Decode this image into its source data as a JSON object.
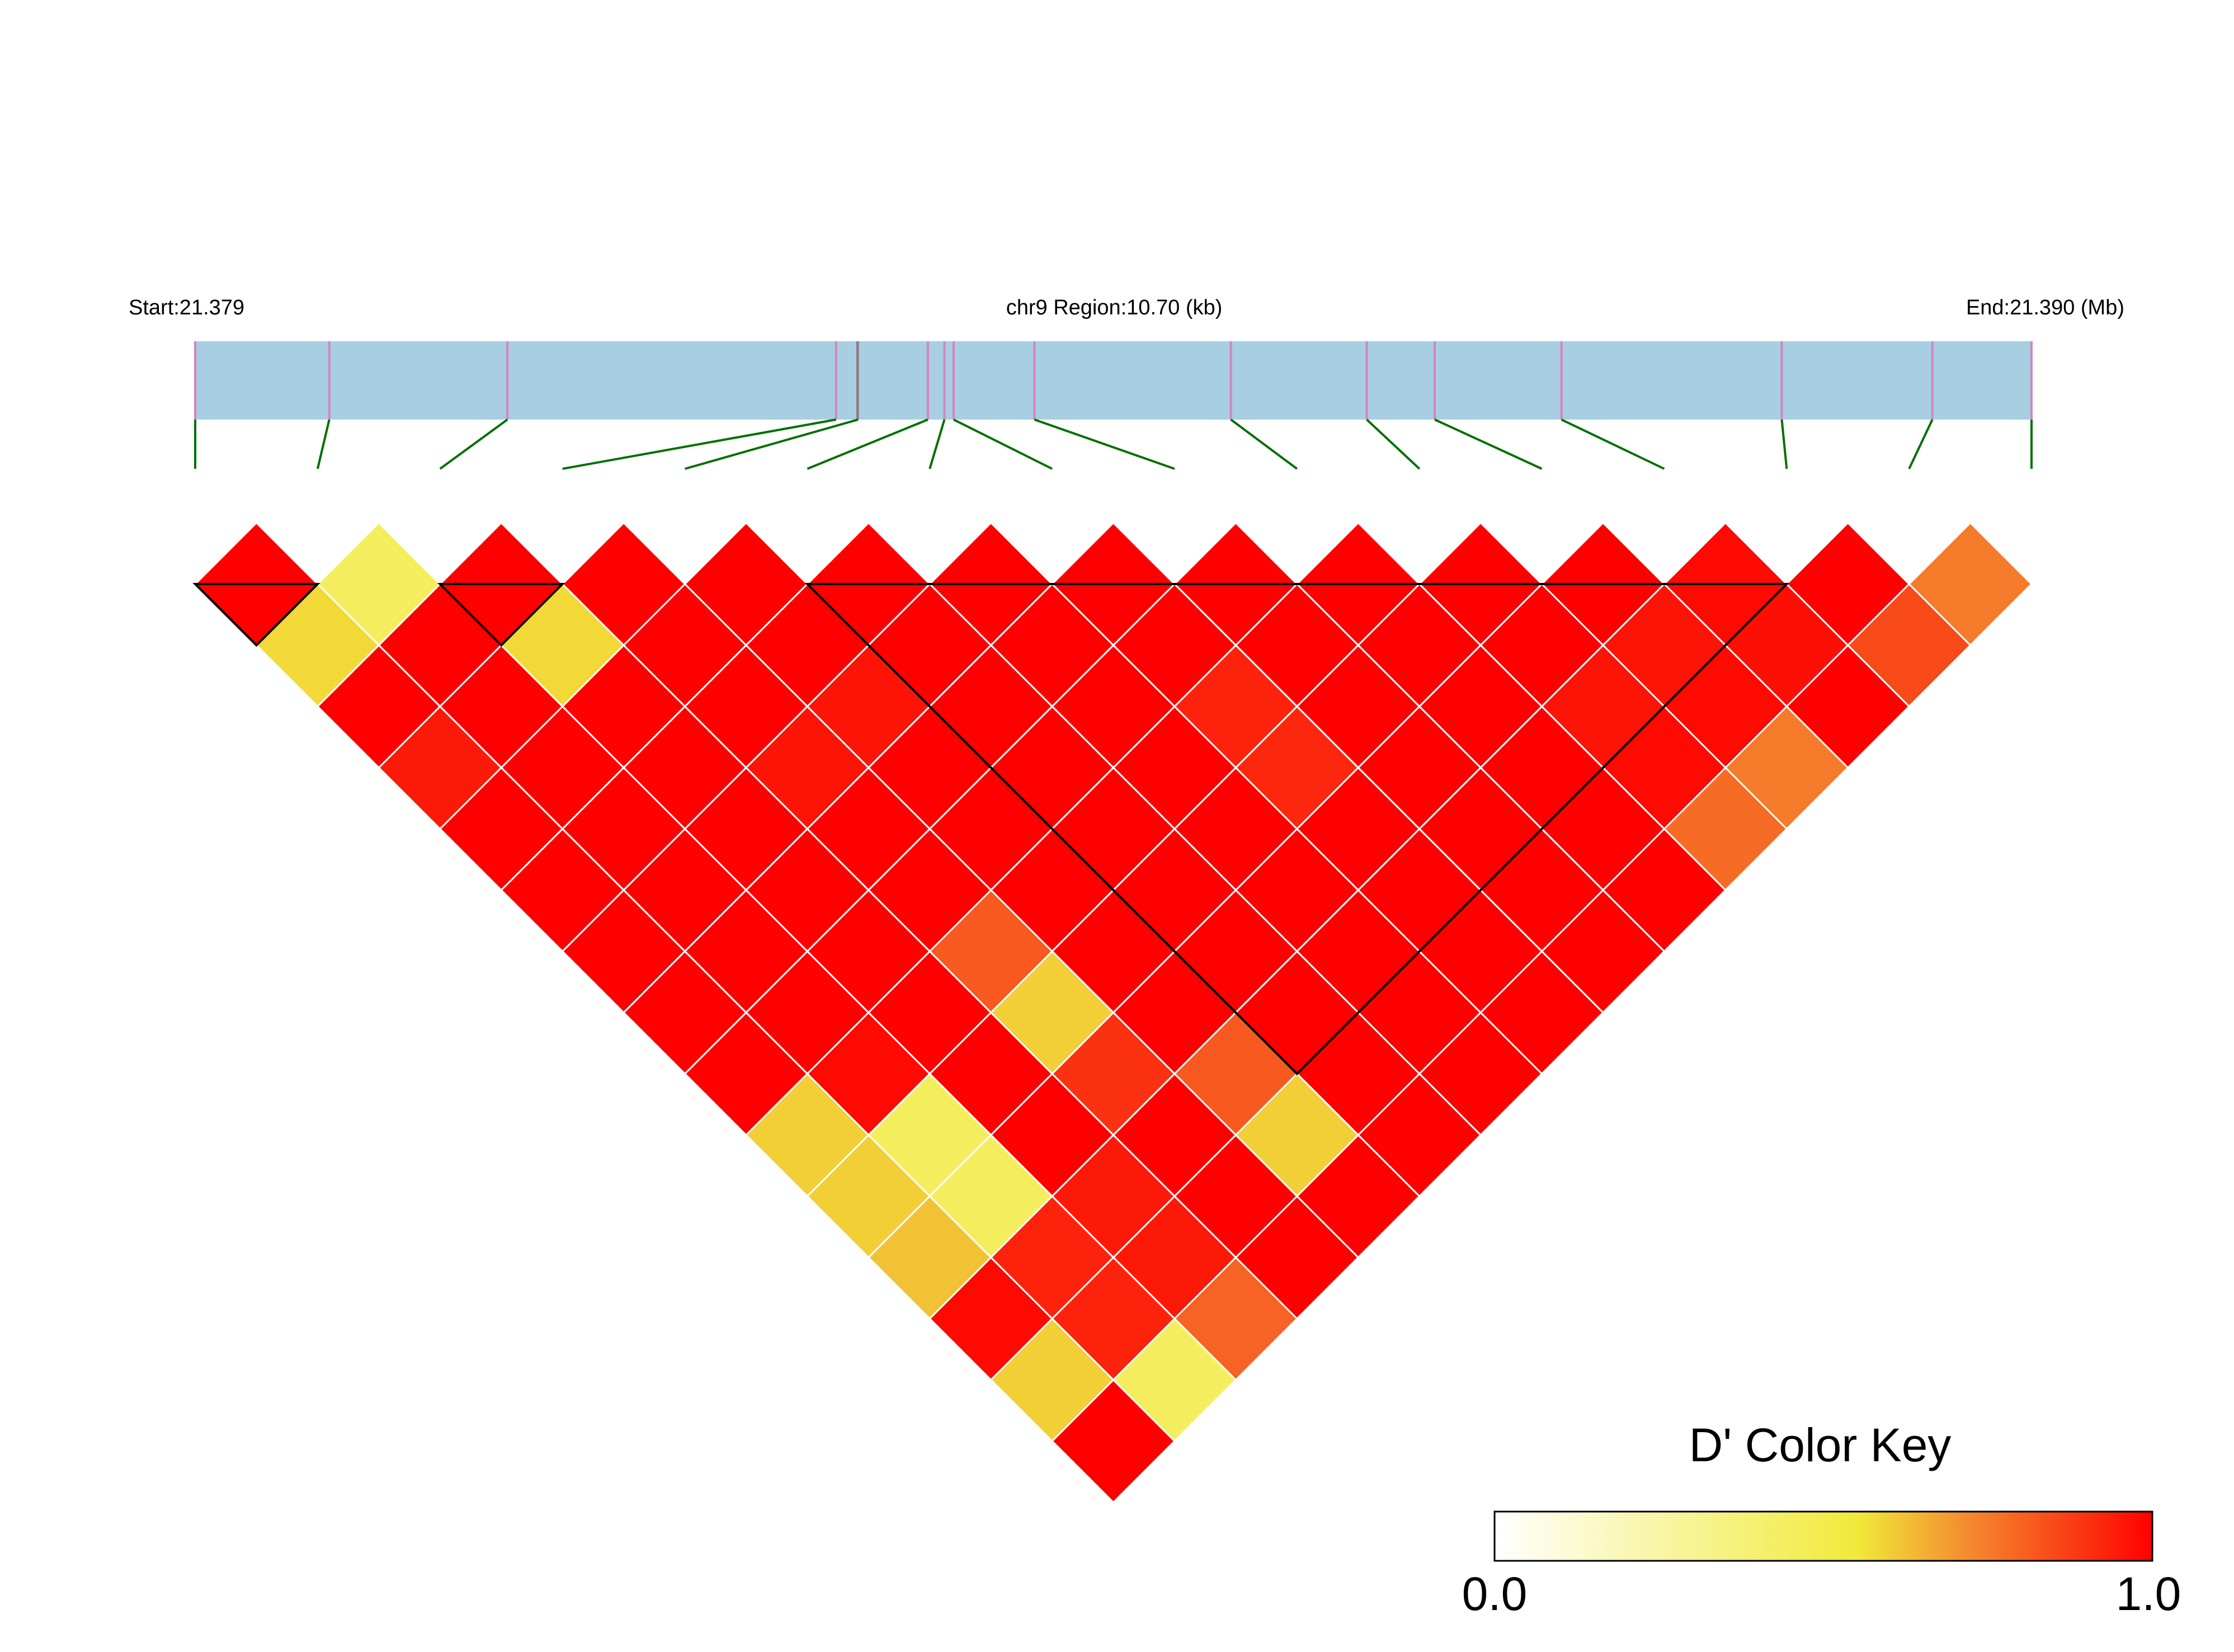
{
  "header": {
    "start_label": "Start:21.379",
    "region_label": "chr9 Region:10.70 (kb)",
    "end_label": "End:21.390 (Mb)"
  },
  "color_key": {
    "title": "D' Color Key",
    "min_label": "0.0",
    "max_label": "1.0",
    "stops": [
      "#ffffff",
      "#f1ea3a",
      "#f48a2f",
      "#ff0000"
    ]
  },
  "colors": {
    "track_fill": "#a7cfe1",
    "snp_tick": "#d783bf",
    "connector": "#007000",
    "block_outline": "#000000",
    "cell_border": "#ffffff"
  },
  "chart_data": {
    "type": "heatmap",
    "title": "",
    "measure": "D'",
    "scale": [
      0,
      1
    ],
    "region": {
      "chromosome": "chr9",
      "start_mb": 21.379,
      "end_mb": 21.39,
      "length_kb": 10.7
    },
    "snp_positions_frac": [
      0.0,
      0.073,
      0.17,
      0.349,
      0.361,
      0.399,
      0.408,
      0.413,
      0.457,
      0.564,
      0.638,
      0.675,
      0.744,
      0.864,
      0.946,
      1.0
    ],
    "ld_matrix_rows": [
      [
        1.0,
        0.45,
        1.0,
        1.0,
        1.0,
        1.0,
        1.0,
        1.0,
        1.0,
        1.0,
        1.0,
        1.0,
        0.98,
        1.0,
        0.75
      ],
      [
        0.58,
        1.0,
        0.58,
        1.0,
        1.0,
        1.0,
        1.0,
        1.0,
        1.0,
        1.0,
        1.0,
        0.96,
        0.97,
        0.85
      ],
      [
        1.0,
        1.0,
        1.0,
        1.0,
        0.96,
        1.0,
        1.0,
        0.93,
        1.0,
        1.0,
        0.96,
        0.98,
        1.0
      ],
      [
        0.95,
        1.0,
        1.0,
        0.96,
        1.0,
        1.0,
        1.0,
        0.92,
        1.0,
        1.0,
        0.98,
        0.75
      ],
      [
        1.0,
        1.0,
        1.0,
        1.0,
        1.0,
        1.0,
        1.0,
        1.0,
        1.0,
        1.0,
        0.78
      ],
      [
        1.0,
        1.0,
        1.0,
        1.0,
        1.0,
        1.0,
        1.0,
        1.0,
        1.0,
        1.0
      ],
      [
        1.0,
        1.0,
        1.0,
        0.82,
        1.0,
        1.0,
        1.0,
        1.0,
        1.0
      ],
      [
        1.0,
        1.0,
        1.0,
        0.6,
        1.0,
        1.0,
        1.0,
        1.0
      ],
      [
        1.0,
        0.98,
        1.0,
        0.9,
        0.82,
        1.0,
        1.0
      ],
      [
        0.6,
        0.45,
        1.0,
        1.0,
        0.6,
        1.0
      ],
      [
        0.6,
        0.45,
        0.95,
        1.0,
        1.0
      ],
      [
        0.62,
        0.93,
        0.95,
        1.0
      ],
      [
        0.98,
        0.93,
        0.8
      ],
      [
        0.6,
        0.45
      ],
      [
        1.0
      ]
    ],
    "haplotype_blocks": [
      {
        "first_snp": 1,
        "last_snp": 2
      },
      {
        "first_snp": 3,
        "last_snp": 4
      },
      {
        "first_snp": 6,
        "last_snp": 14
      }
    ]
  }
}
